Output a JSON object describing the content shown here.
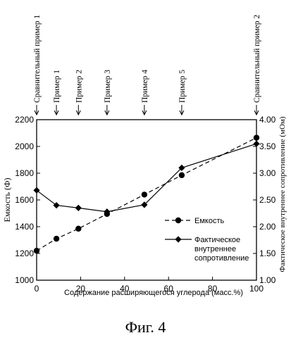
{
  "figure_caption": "Фиг. 4",
  "chart_data": {
    "type": "line",
    "xlabel": "Содержание расширяющегося углерода (масс.%)",
    "ylabel": "Емкость (Ф)",
    "y2label": "Фактическое внутреннее сопротивление (мОм)",
    "xlim": [
      0,
      100
    ],
    "ylim": [
      1000,
      2200
    ],
    "y2lim": [
      1.0,
      4.0
    ],
    "x_ticks": [
      "0",
      "20",
      "40",
      "60",
      "80",
      "100"
    ],
    "y_ticks": [
      "1000",
      "1200",
      "1400",
      "1600",
      "1800",
      "2000",
      "2200"
    ],
    "y2_ticks": [
      "1.00",
      "1.50",
      "2.00",
      "2.50",
      "3.00",
      "3.50",
      "4.00"
    ],
    "grid": false,
    "legend_position": "bottom-right",
    "top_markers": [
      {
        "label": "Сравнительный пример 1",
        "x": 0
      },
      {
        "label": "Пример 1",
        "x": 9
      },
      {
        "label": "Пример 2",
        "x": 19
      },
      {
        "label": "Пример 3",
        "x": 32
      },
      {
        "label": "Пример 4",
        "x": 49
      },
      {
        "label": "Пример 5",
        "x": 66
      },
      {
        "label": "Сравнительный пример 2",
        "x": 100
      }
    ],
    "series": [
      {
        "name": "Емкость",
        "axis": "left",
        "style": "dashed",
        "marker": "circle",
        "x": [
          0,
          9,
          19,
          32,
          49,
          66,
          100
        ],
        "values": [
          1220,
          1310,
          1385,
          1495,
          1640,
          1785,
          2065
        ]
      },
      {
        "name": "Фактическое внутреннее сопротивление",
        "axis": "right",
        "style": "solid",
        "marker": "diamond",
        "x": [
          0,
          9,
          19,
          32,
          49,
          66,
          100
        ],
        "values": [
          2.68,
          2.4,
          2.35,
          2.28,
          2.41,
          3.1,
          3.55
        ]
      }
    ],
    "legend_lines": [
      [
        "Емкость"
      ],
      [
        "Фактическое",
        "внутреннее",
        "сопротивление"
      ]
    ]
  }
}
